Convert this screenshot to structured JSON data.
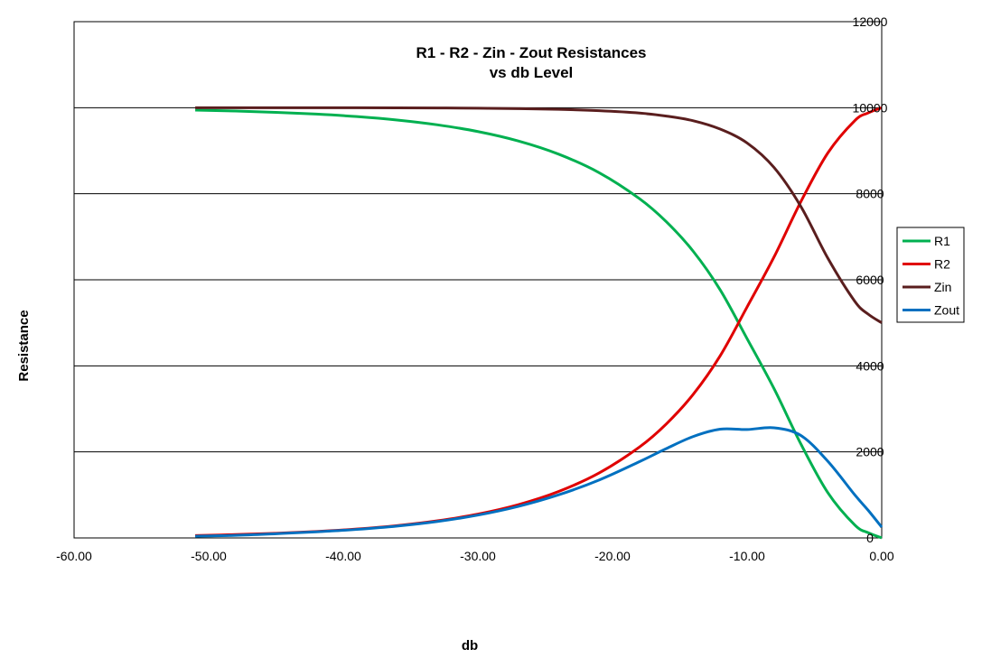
{
  "chart_data": {
    "type": "line",
    "title": "R1 - R2 - Zin - Zout  Resistances",
    "subtitle": "vs  db Level",
    "xlabel": "db",
    "ylabel": "Resistance",
    "xlim": [
      -60,
      0
    ],
    "ylim": [
      0,
      12000
    ],
    "x_ticks": [
      "-60.00",
      "-50.00",
      "-40.00",
      "-30.00",
      "-20.00",
      "-10.00",
      "0.00"
    ],
    "y_ticks": [
      "0",
      "2000",
      "4000",
      "6000",
      "8000",
      "10000",
      "12000"
    ],
    "grid": "horizontal",
    "legend_position": "right",
    "x": [
      -51,
      -48,
      -45,
      -42,
      -39,
      -36,
      -33,
      -30,
      -27,
      -24,
      -21,
      -18,
      -16,
      -14,
      -12,
      -10,
      -8,
      -6,
      -4,
      -2,
      -1,
      0
    ],
    "series": [
      {
        "name": "R1",
        "color": "#00b050",
        "values": [
          9944,
          9922,
          9892,
          9851,
          9794,
          9714,
          9602,
          9446,
          9227,
          8920,
          8491,
          7887,
          7349,
          6661,
          5766,
          4630,
          3470,
          2180,
          1050,
          300,
          120,
          0
        ]
      },
      {
        "name": "R2",
        "color": "#e00000",
        "values": [
          56,
          78,
          108,
          149,
          206,
          286,
          398,
          554,
          773,
          1080,
          1509,
          2113,
          2651,
          3339,
          4234,
          5370,
          6530,
          7820,
          8950,
          9700,
          9880,
          10000
        ]
      },
      {
        "name": "Zin",
        "color": "#5a1e1e",
        "values": [
          10000,
          10000,
          10000,
          9999,
          9998,
          9997,
          9994,
          9989,
          9979,
          9962,
          9930,
          9875,
          9805,
          9697,
          9503,
          9180,
          8610,
          7700,
          6500,
          5500,
          5200,
          5000
        ]
      },
      {
        "name": "Zout",
        "color": "#0070c0",
        "values": [
          40,
          60,
          98,
          141,
          198,
          275,
          382,
          531,
          733,
          1002,
          1346,
          1773,
          2077,
          2358,
          2528,
          2520,
          2560,
          2380,
          1780,
          1000,
          640,
          250
        ]
      }
    ]
  }
}
